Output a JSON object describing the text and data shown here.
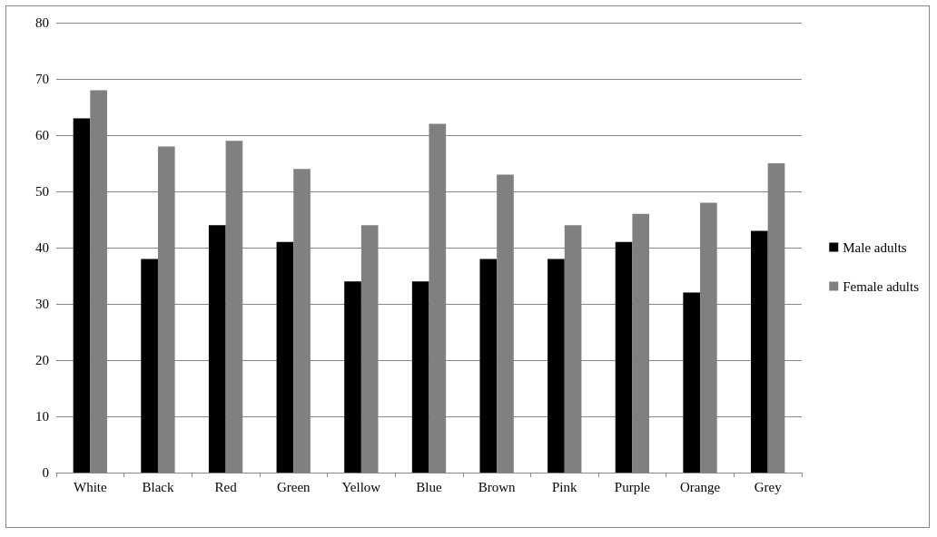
{
  "chart_data": {
    "type": "bar",
    "categories": [
      "White",
      "Black",
      "Red",
      "Green",
      "Yellow",
      "Blue",
      "Brown",
      "Pink",
      "Purple",
      "Orange",
      "Grey"
    ],
    "series": [
      {
        "name": "Male adults",
        "color": "#000000",
        "values": [
          63,
          38,
          44,
          41,
          34,
          34,
          38,
          38,
          41,
          32,
          43
        ]
      },
      {
        "name": "Female adults",
        "color": "#808080",
        "values": [
          68,
          58,
          59,
          54,
          44,
          62,
          53,
          44,
          46,
          48,
          55
        ]
      }
    ],
    "ylim": [
      0,
      80
    ],
    "yticks": [
      0,
      10,
      20,
      30,
      40,
      50,
      60,
      70,
      80
    ],
    "grid": "y",
    "legend": "right"
  }
}
